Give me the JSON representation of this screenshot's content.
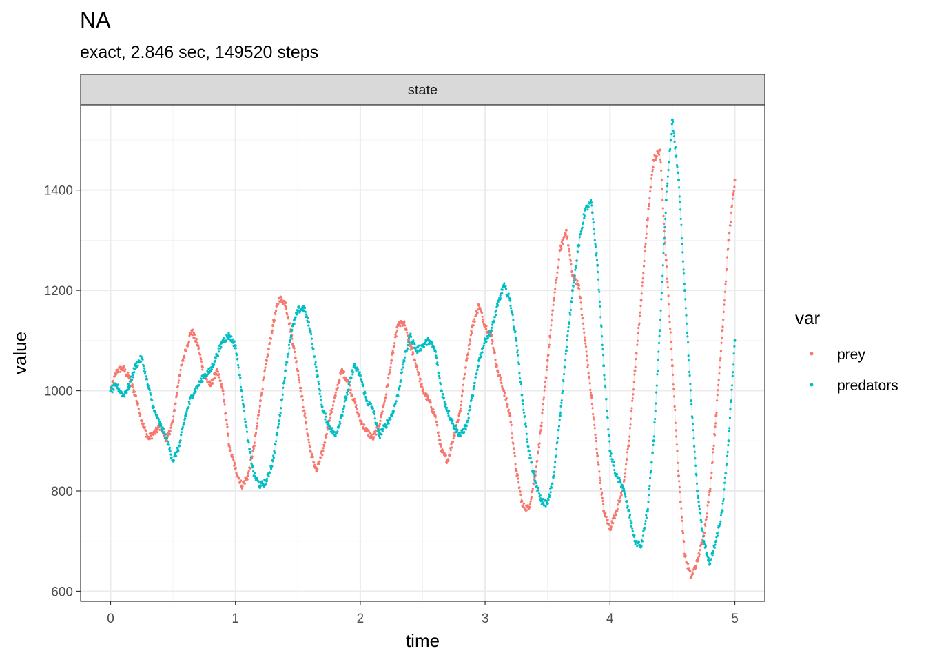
{
  "chart_data": {
    "type": "scatter",
    "title": "NA",
    "subtitle": "exact, 2.846 sec, 149520 steps",
    "facet_label": "state",
    "xlabel": "time",
    "ylabel": "value",
    "xlim": [
      -0.24,
      5.24
    ],
    "ylim": [
      580,
      1570
    ],
    "x_ticks": [
      0,
      1,
      2,
      3,
      4,
      5
    ],
    "x_tick_labels": [
      "0",
      "1",
      "2",
      "3",
      "4",
      "5"
    ],
    "y_ticks": [
      600,
      800,
      1000,
      1200,
      1400
    ],
    "y_tick_labels": [
      "600",
      "800",
      "1000",
      "1200",
      "1400"
    ],
    "grid": true,
    "legend": {
      "title": "var",
      "position": "right"
    },
    "series": [
      {
        "name": "prey",
        "color": "#F8766D",
        "points": [
          [
            0.0,
            1000
          ],
          [
            0.05,
            1040
          ],
          [
            0.1,
            1045
          ],
          [
            0.15,
            1025
          ],
          [
            0.2,
            990
          ],
          [
            0.25,
            940
          ],
          [
            0.3,
            905
          ],
          [
            0.35,
            915
          ],
          [
            0.4,
            930
          ],
          [
            0.45,
            900
          ],
          [
            0.5,
            940
          ],
          [
            0.55,
            1030
          ],
          [
            0.6,
            1080
          ],
          [
            0.65,
            1120
          ],
          [
            0.7,
            1090
          ],
          [
            0.75,
            1030
          ],
          [
            0.8,
            1010
          ],
          [
            0.85,
            1040
          ],
          [
            0.9,
            1000
          ],
          [
            0.95,
            890
          ],
          [
            1.0,
            845
          ],
          [
            1.05,
            810
          ],
          [
            1.1,
            830
          ],
          [
            1.15,
            890
          ],
          [
            1.2,
            980
          ],
          [
            1.25,
            1060
          ],
          [
            1.3,
            1130
          ],
          [
            1.35,
            1185
          ],
          [
            1.4,
            1175
          ],
          [
            1.45,
            1110
          ],
          [
            1.5,
            1040
          ],
          [
            1.55,
            960
          ],
          [
            1.6,
            880
          ],
          [
            1.65,
            840
          ],
          [
            1.7,
            880
          ],
          [
            1.75,
            940
          ],
          [
            1.8,
            990
          ],
          [
            1.85,
            1040
          ],
          [
            1.9,
            1020
          ],
          [
            1.95,
            980
          ],
          [
            2.0,
            940
          ],
          [
            2.05,
            920
          ],
          [
            2.1,
            905
          ],
          [
            2.15,
            930
          ],
          [
            2.2,
            985
          ],
          [
            2.25,
            1060
          ],
          [
            2.3,
            1130
          ],
          [
            2.35,
            1135
          ],
          [
            2.4,
            1090
          ],
          [
            2.45,
            1050
          ],
          [
            2.5,
            1000
          ],
          [
            2.55,
            980
          ],
          [
            2.6,
            950
          ],
          [
            2.65,
            880
          ],
          [
            2.7,
            860
          ],
          [
            2.75,
            910
          ],
          [
            2.8,
            960
          ],
          [
            2.85,
            1060
          ],
          [
            2.9,
            1130
          ],
          [
            2.95,
            1170
          ],
          [
            3.0,
            1130
          ],
          [
            3.05,
            1110
          ],
          [
            3.1,
            1040
          ],
          [
            3.15,
            1000
          ],
          [
            3.2,
            950
          ],
          [
            3.25,
            840
          ],
          [
            3.3,
            770
          ],
          [
            3.35,
            765
          ],
          [
            3.4,
            830
          ],
          [
            3.45,
            930
          ],
          [
            3.5,
            1060
          ],
          [
            3.55,
            1180
          ],
          [
            3.6,
            1280
          ],
          [
            3.65,
            1320
          ],
          [
            3.7,
            1230
          ],
          [
            3.75,
            1210
          ],
          [
            3.8,
            1100
          ],
          [
            3.85,
            990
          ],
          [
            3.9,
            870
          ],
          [
            3.95,
            760
          ],
          [
            4.0,
            725
          ],
          [
            4.05,
            760
          ],
          [
            4.1,
            800
          ],
          [
            4.15,
            890
          ],
          [
            4.2,
            1040
          ],
          [
            4.25,
            1180
          ],
          [
            4.3,
            1340
          ],
          [
            4.35,
            1460
          ],
          [
            4.4,
            1480
          ],
          [
            4.45,
            1260
          ],
          [
            4.5,
            1050
          ],
          [
            4.55,
            830
          ],
          [
            4.6,
            670
          ],
          [
            4.65,
            628
          ],
          [
            4.7,
            660
          ],
          [
            4.75,
            710
          ],
          [
            4.8,
            800
          ],
          [
            4.85,
            950
          ],
          [
            4.9,
            1120
          ],
          [
            4.95,
            1300
          ],
          [
            5.0,
            1420
          ]
        ]
      },
      {
        "name": "predators",
        "color": "#00BFC4",
        "points": [
          [
            0.0,
            1000
          ],
          [
            0.05,
            1010
          ],
          [
            0.1,
            990
          ],
          [
            0.15,
            1010
          ],
          [
            0.2,
            1050
          ],
          [
            0.25,
            1065
          ],
          [
            0.3,
            1010
          ],
          [
            0.35,
            960
          ],
          [
            0.4,
            930
          ],
          [
            0.45,
            905
          ],
          [
            0.5,
            860
          ],
          [
            0.55,
            890
          ],
          [
            0.6,
            950
          ],
          [
            0.65,
            990
          ],
          [
            0.7,
            1010
          ],
          [
            0.75,
            1030
          ],
          [
            0.8,
            1040
          ],
          [
            0.85,
            1070
          ],
          [
            0.9,
            1100
          ],
          [
            0.95,
            1110
          ],
          [
            1.0,
            1090
          ],
          [
            1.05,
            1000
          ],
          [
            1.1,
            900
          ],
          [
            1.15,
            830
          ],
          [
            1.2,
            810
          ],
          [
            1.25,
            820
          ],
          [
            1.3,
            860
          ],
          [
            1.35,
            940
          ],
          [
            1.4,
            1040
          ],
          [
            1.45,
            1120
          ],
          [
            1.5,
            1160
          ],
          [
            1.55,
            1165
          ],
          [
            1.6,
            1120
          ],
          [
            1.65,
            1040
          ],
          [
            1.7,
            960
          ],
          [
            1.75,
            930
          ],
          [
            1.8,
            910
          ],
          [
            1.85,
            950
          ],
          [
            1.9,
            1000
          ],
          [
            1.95,
            1050
          ],
          [
            2.0,
            1030
          ],
          [
            2.05,
            980
          ],
          [
            2.1,
            965
          ],
          [
            2.15,
            910
          ],
          [
            2.2,
            930
          ],
          [
            2.25,
            950
          ],
          [
            2.3,
            990
          ],
          [
            2.35,
            1060
          ],
          [
            2.4,
            1110
          ],
          [
            2.45,
            1080
          ],
          [
            2.5,
            1090
          ],
          [
            2.55,
            1100
          ],
          [
            2.6,
            1080
          ],
          [
            2.65,
            1000
          ],
          [
            2.7,
            960
          ],
          [
            2.75,
            930
          ],
          [
            2.8,
            910
          ],
          [
            2.85,
            930
          ],
          [
            2.9,
            990
          ],
          [
            2.95,
            1060
          ],
          [
            3.0,
            1100
          ],
          [
            3.05,
            1120
          ],
          [
            3.1,
            1170
          ],
          [
            3.15,
            1210
          ],
          [
            3.2,
            1180
          ],
          [
            3.25,
            1100
          ],
          [
            3.3,
            980
          ],
          [
            3.35,
            880
          ],
          [
            3.4,
            820
          ],
          [
            3.45,
            780
          ],
          [
            3.5,
            775
          ],
          [
            3.55,
            830
          ],
          [
            3.6,
            950
          ],
          [
            3.65,
            1080
          ],
          [
            3.7,
            1200
          ],
          [
            3.75,
            1290
          ],
          [
            3.8,
            1360
          ],
          [
            3.85,
            1375
          ],
          [
            3.9,
            1250
          ],
          [
            3.95,
            1050
          ],
          [
            4.0,
            880
          ],
          [
            4.05,
            830
          ],
          [
            4.1,
            810
          ],
          [
            4.15,
            760
          ],
          [
            4.2,
            700
          ],
          [
            4.25,
            690
          ],
          [
            4.3,
            760
          ],
          [
            4.35,
            900
          ],
          [
            4.4,
            1120
          ],
          [
            4.45,
            1380
          ],
          [
            4.5,
            1540
          ],
          [
            4.55,
            1420
          ],
          [
            4.6,
            1200
          ],
          [
            4.65,
            980
          ],
          [
            4.7,
            800
          ],
          [
            4.75,
            700
          ],
          [
            4.8,
            655
          ],
          [
            4.85,
            700
          ],
          [
            4.9,
            760
          ],
          [
            4.95,
            900
          ],
          [
            5.0,
            1100
          ]
        ]
      }
    ]
  }
}
